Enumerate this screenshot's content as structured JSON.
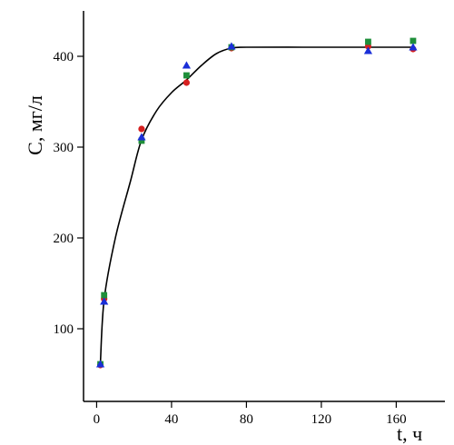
{
  "chart_data": {
    "type": "scatter",
    "xlabel": "t, ч",
    "ylabel": "С, мг/л",
    "xlim": [
      -7,
      186
    ],
    "ylim": [
      20,
      450
    ],
    "xticks": [
      0,
      40,
      80,
      120,
      160
    ],
    "yticks": [
      100,
      200,
      300,
      400
    ],
    "grid": false,
    "fit_curve": {
      "color": "#000000",
      "x": [
        2,
        4,
        10,
        18,
        24,
        32,
        40,
        48,
        56,
        64,
        72,
        80,
        110,
        145,
        169
      ],
      "y": [
        62,
        132,
        200,
        262,
        308,
        340,
        360,
        374,
        390,
        403,
        409,
        410,
        410,
        410,
        410
      ]
    },
    "series": [
      {
        "color": "#d62020",
        "marker": "circle",
        "x": [
          2,
          4,
          24,
          48,
          72,
          145,
          169
        ],
        "y": [
          60,
          133,
          320,
          371,
          409,
          411,
          408
        ]
      },
      {
        "color": "#1f8f3a",
        "marker": "square",
        "x": [
          2,
          4,
          24,
          48,
          72,
          145,
          169
        ],
        "y": [
          61,
          137,
          307,
          379,
          410,
          416,
          417
        ]
      },
      {
        "color": "#1a2fd8",
        "marker": "triangle",
        "x": [
          2,
          4,
          24,
          48,
          72,
          145,
          169
        ],
        "y": [
          61,
          130,
          311,
          390,
          411,
          406,
          410
        ]
      }
    ]
  }
}
